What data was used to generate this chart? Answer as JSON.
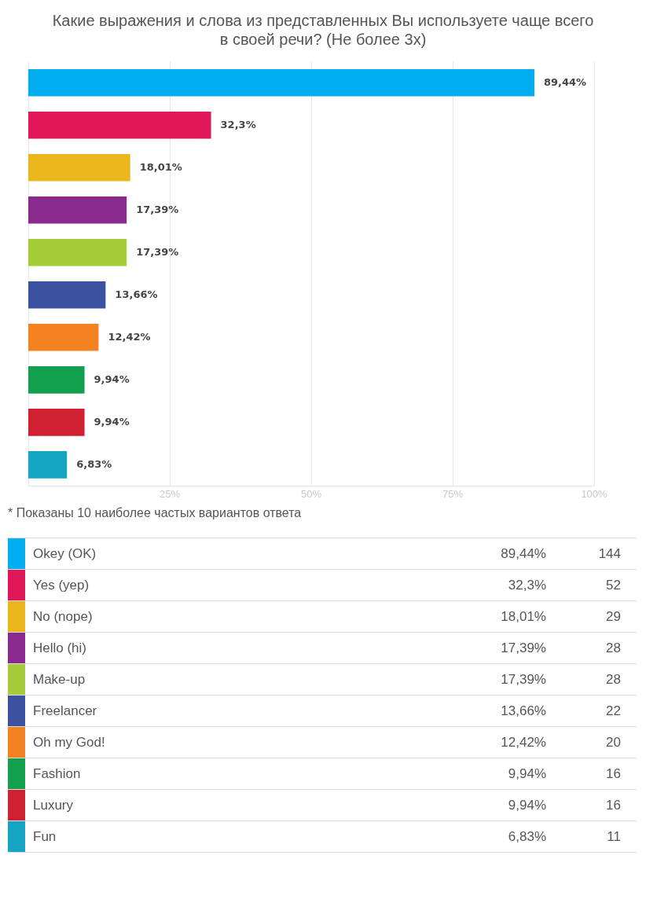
{
  "chart_data": [
    {
      "type": "bar",
      "orientation": "horizontal",
      "title": "Какие выражения и слова из представленных Вы используете чаще всего в своей речи? (Не более 3х)",
      "categories": [
        null,
        null,
        null,
        null,
        null,
        null,
        null,
        null,
        null,
        null
      ],
      "values": [
        89.44,
        32.3,
        18.01,
        17.39,
        17.39,
        13.66,
        12.42,
        9.94,
        9.94,
        6.83
      ],
      "colors": [
        "#00aeef",
        "#e0185a",
        "#ebb51c",
        "#8a2a8f",
        "#a5cd39",
        "#3a52a0",
        "#f58220",
        "#12a04f",
        "#cf2131",
        "#14a5c4"
      ],
      "value_labels": [
        "89,44%",
        "32,3%",
        "18,01%",
        "17,39%",
        "17,39%",
        "13,66%",
        "12,42%",
        "9,94%",
        "9,94%",
        "6,83%"
      ],
      "xlim": [
        0,
        100
      ],
      "xticks": [
        {
          "value": 25,
          "label": "25%"
        },
        {
          "value": 50,
          "label": "50%"
        },
        {
          "value": 75,
          "label": "75%"
        },
        {
          "value": 100,
          "label": "100%"
        }
      ],
      "grid": "x",
      "annotations": [
        "* Показаны 10 наиболее частых вариантов ответа"
      ]
    },
    {
      "type": "other",
      "categories": [
        "Okey (OK)",
        "Yes (yep)",
        "No (nope)",
        "Hello (hi)",
        "Make-up",
        "Freelancer",
        "Oh my God!",
        "Fashion",
        "Luxury",
        "Fun"
      ],
      "colors": [
        "#00aeef",
        "#e0185a",
        "#ebb51c",
        "#8a2a8f",
        "#a5cd39",
        "#3a52a0",
        "#f58220",
        "#12a04f",
        "#cf2131",
        "#14a5c4"
      ],
      "series": [
        {
          "values": [
            144,
            52,
            29,
            28,
            28,
            22,
            20,
            16,
            16,
            11
          ]
        }
      ],
      "data_labels": true
    }
  ]
}
